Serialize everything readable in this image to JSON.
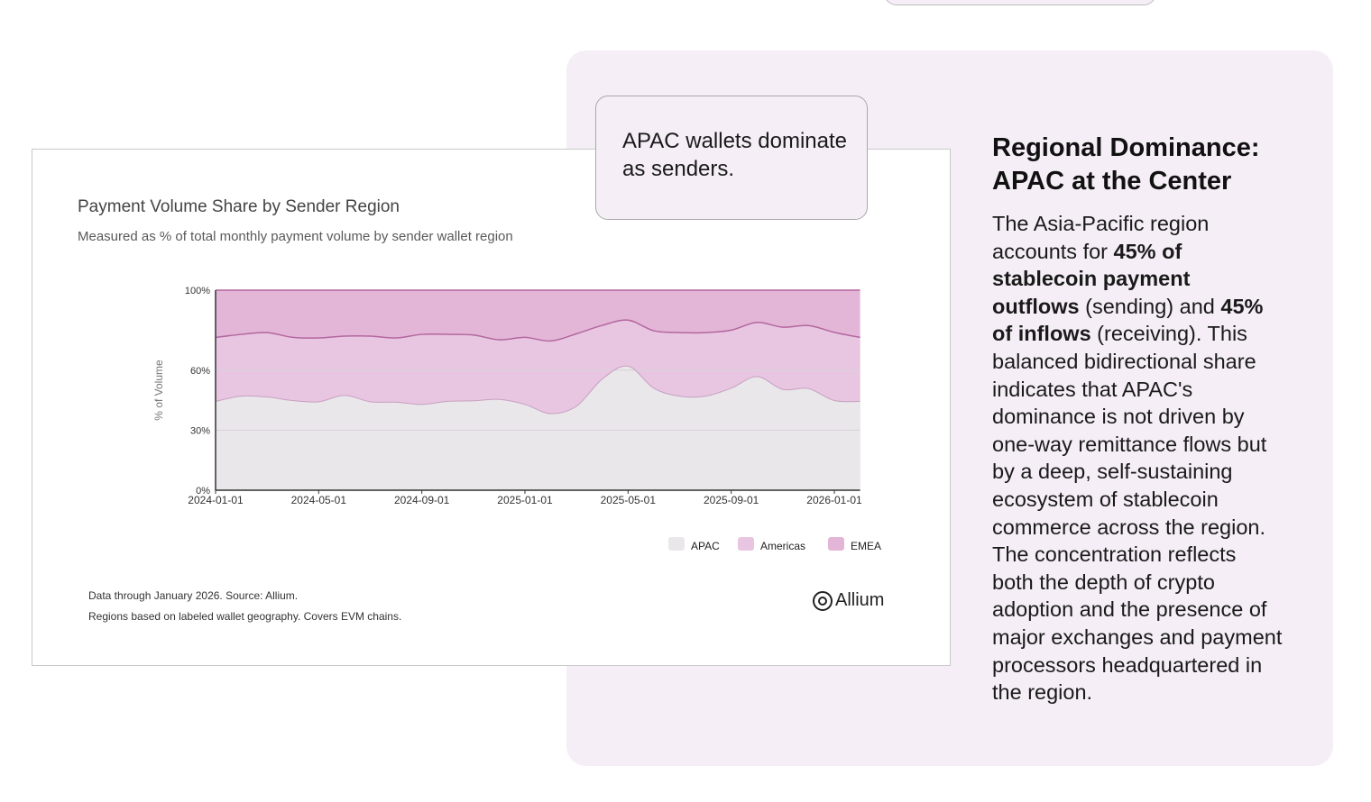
{
  "callout": {
    "text": "APAC wallets dominate as senders."
  },
  "side": {
    "title": "Regional Dominance: APAC at the Center",
    "body": [
      {
        "t": "The Asia-Pacific region accounts for ",
        "b": false
      },
      {
        "t": "45% of stablecoin payment outflows",
        "b": true
      },
      {
        "t": " (sending) and ",
        "b": false
      },
      {
        "t": "45% of inflows",
        "b": true
      },
      {
        "t": " (receiving). This balanced bidirectional share indicates that APAC's dominance is not driven by one-way remittance flows but by a deep, self-sustaining ecosystem of stablecoin commerce across the region. The concentration reflects both the depth of crypto adoption and the presence of major exchanges and payment processors headquartered in the region.",
        "b": false
      }
    ]
  },
  "card": {
    "notes": [
      "Data through January 2026. Source: Allium.",
      "Regions based on labeled wallet geography. Covers EVM chains."
    ],
    "logo_text": "Allium",
    "watermark_text": "Allium"
  },
  "colors": {
    "apac": "#e9e7ea",
    "americas": "#e8c6e2",
    "emea": "#e3b6d7",
    "line": "#b3679f",
    "panel": "#f5eef6"
  },
  "chart_data": {
    "type": "area",
    "stacked": true,
    "title": "Payment Volume Share by Sender Region",
    "subtitle": "Measured as % of total monthly payment volume by sender wallet region",
    "xlabel": "",
    "ylabel": "% of Volume",
    "ylim": [
      0,
      100
    ],
    "yticks": [
      0,
      30,
      60,
      100
    ],
    "ytick_labels": [
      "0%",
      "30%",
      "60%",
      "100%"
    ],
    "xtick_labels": [
      "2024-01-01",
      "2024-05-01",
      "2024-09-01",
      "2025-01-01",
      "2025-05-01",
      "2025-09-01",
      "2026-01-01"
    ],
    "xtick_month_index": [
      0,
      4,
      8,
      12,
      16,
      20,
      24
    ],
    "legend_position": "bottom-right",
    "grid": true,
    "x": [
      "2024-01",
      "2024-02",
      "2024-03",
      "2024-04",
      "2024-05",
      "2024-06",
      "2024-07",
      "2024-08",
      "2024-09",
      "2024-10",
      "2024-11",
      "2024-12",
      "2025-01",
      "2025-02",
      "2025-03",
      "2025-04",
      "2025-05",
      "2025-06",
      "2025-07",
      "2025-08",
      "2025-09",
      "2025-10",
      "2025-11",
      "2025-12",
      "2026-01",
      "2026-02"
    ],
    "series": [
      {
        "name": "APAC",
        "values": [
          44.4,
          47.0,
          46.6,
          44.8,
          44.2,
          47.4,
          44.2,
          44.0,
          42.9,
          44.4,
          44.7,
          45.4,
          42.9,
          38.3,
          42.0,
          55.6,
          62.0,
          51.0,
          47.0,
          47.0,
          51.0,
          56.8,
          50.4,
          50.8,
          44.8,
          44.4
        ]
      },
      {
        "name": "Americas",
        "values": [
          32.0,
          30.9,
          32.2,
          31.6,
          31.9,
          29.6,
          32.8,
          32.1,
          35.0,
          33.5,
          32.9,
          29.8,
          33.5,
          36.3,
          36.2,
          26.8,
          23.0,
          28.7,
          31.8,
          31.8,
          29.0,
          27.1,
          31.1,
          31.5,
          34.1,
          32.0
        ]
      },
      {
        "name": "EMEA",
        "values": [
          23.6,
          22.1,
          21.2,
          23.6,
          23.9,
          23.0,
          23.0,
          23.9,
          22.1,
          22.1,
          22.4,
          24.8,
          23.6,
          25.4,
          21.8,
          17.6,
          15.0,
          20.3,
          21.2,
          21.2,
          20.0,
          16.1,
          18.5,
          17.7,
          21.1,
          23.6
        ]
      }
    ]
  }
}
